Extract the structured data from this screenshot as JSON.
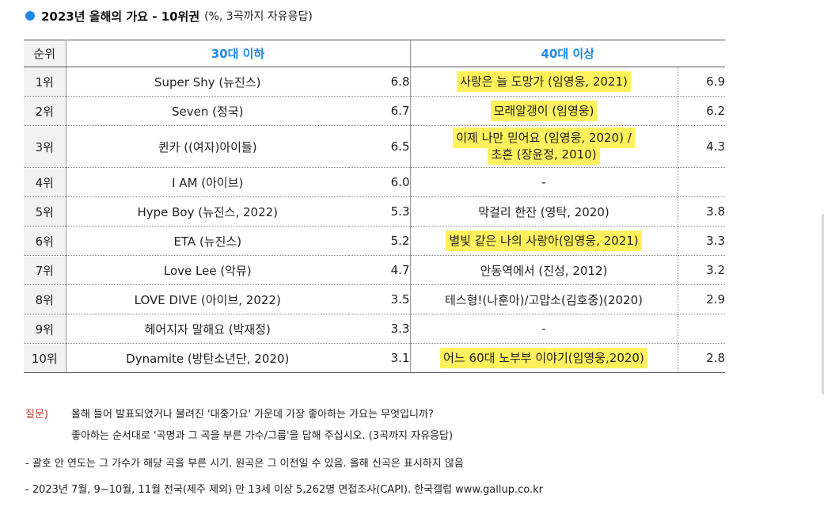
{
  "title": {
    "main": "2023년 올해의 가요 - 10위권",
    "sub": "(%, 3곡까지 자유응답)"
  },
  "table": {
    "header": {
      "rank": "순위",
      "group_30": "30대 이하",
      "group_40": "40대 이상"
    },
    "rows": [
      {
        "rank": "1위",
        "song30": "Super Shy (뉴진스)",
        "pct30": "6.8",
        "song40": "사랑은 늘 도망가 (임영웅, 2021)",
        "pct40": "6.9",
        "hl": true
      },
      {
        "rank": "2위",
        "song30": "Seven (정국)",
        "pct30": "6.7",
        "song40": "모래알갱이 (임영웅)",
        "pct40": "6.2",
        "hl": true
      },
      {
        "rank": "3위",
        "song30": "퀸카 ((여자)아이들)",
        "pct30": "6.5",
        "song40_line1": "이제 나만 믿어요 (임영웅, 2020) /",
        "song40_line2": "초혼 (장윤정, 2010)",
        "pct40": "4.3",
        "hl": true
      },
      {
        "rank": "4위",
        "song30": "I AM (아이브)",
        "pct30": "6.0",
        "song40": "-",
        "pct40": ""
      },
      {
        "rank": "5위",
        "song30": "Hype Boy (뉴진스, 2022)",
        "pct30": "5.3",
        "song40": "막걸리 한잔 (영탁, 2020)",
        "pct40": "3.8"
      },
      {
        "rank": "6위",
        "song30": "ETA (뉴진스)",
        "pct30": "5.2",
        "song40": "별빛 같은 나의 사랑아(임영웅, 2021)",
        "pct40": "3.3",
        "hl": true
      },
      {
        "rank": "7위",
        "song30": "Love Lee (악뮤)",
        "pct30": "4.7",
        "song40": "안동역에서 (진성, 2012)",
        "pct40": "3.2"
      },
      {
        "rank": "8위",
        "song30": "LOVE DIVE (아이브, 2022)",
        "pct30": "3.5",
        "song40": "테스형!(나훈아)/고맙소(김호중)(2020)",
        "pct40": "2.9"
      },
      {
        "rank": "9위",
        "song30": "헤어지자 말해요 (박재정)",
        "pct30": "3.3",
        "song40": "-",
        "pct40": ""
      },
      {
        "rank": "10위",
        "song30": "Dynamite (방탄소년단, 2020)",
        "pct30": "3.1",
        "song40": "어느 60대 노부부 이야기(임영웅,2020)",
        "pct40": "2.8",
        "hl": true
      }
    ]
  },
  "notes": {
    "question_label": "질문)",
    "question_line1": "올해 들어 발표되었거나 불려진 '대중가요' 가운데 가장 좋아하는 가요는 무엇입니까?",
    "question_line2": "좋아하는 순서대로 '곡명과 그 곡을 부른 가수/그룹'을 답해 주십시오. (3곡까지 자유응답)",
    "footnote1": "- 괄호 안 연도는 그 가수가 해당 곡을 부른 시기. 원곡은 그 이전일 수 있음. 올해 신곡은 표시하지 않음",
    "footnote2": "- 2023년 7월, 9~10월, 11월 전국(제주 제외) 만 13세 이상 5,262명 면접조사(CAPI). 한국갤럽 www.gallup.co.kr"
  },
  "colors": {
    "accent": "#1e88e5",
    "highlight": "#fff15e",
    "question_label": "#c0392b"
  }
}
